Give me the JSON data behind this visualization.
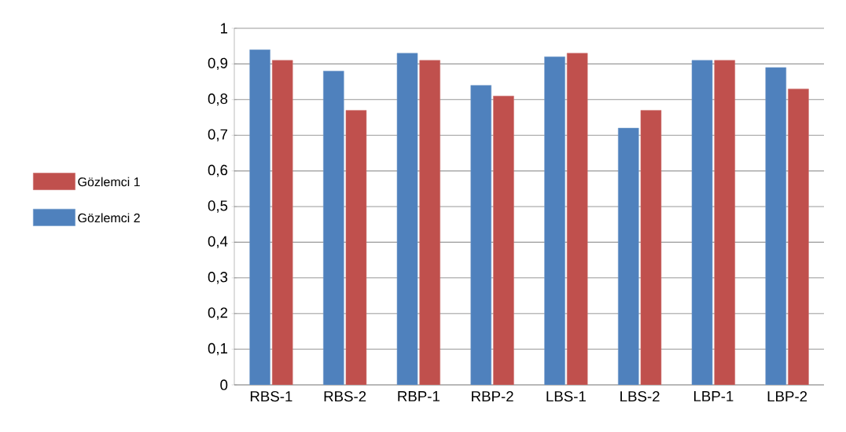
{
  "chart_data": {
    "type": "bar",
    "categories": [
      "RBS-1",
      "RBS-2",
      "RBP-1",
      "RBP-2",
      "LBS-1",
      "LBS-2",
      "LBP-1",
      "LBP-2"
    ],
    "series": [
      {
        "name": "Gözlemci 2",
        "color": "#4f81bd",
        "values": [
          0.94,
          0.88,
          0.93,
          0.84,
          0.92,
          0.72,
          0.91,
          0.89
        ]
      },
      {
        "name": "Gözlemci 1",
        "color": "#c0504d",
        "values": [
          0.91,
          0.77,
          0.91,
          0.81,
          0.93,
          0.77,
          0.91,
          0.83
        ]
      }
    ],
    "ylim": [
      0,
      1
    ],
    "yticks": [
      {
        "value": 0,
        "label": "0"
      },
      {
        "value": 0.1,
        "label": "0,1"
      },
      {
        "value": 0.2,
        "label": "0,2"
      },
      {
        "value": 0.3,
        "label": "0,3"
      },
      {
        "value": 0.4,
        "label": "0,4"
      },
      {
        "value": 0.5,
        "label": "0,5"
      },
      {
        "value": 0.6,
        "label": "0,6"
      },
      {
        "value": 0.7,
        "label": "0,7"
      },
      {
        "value": 0.8,
        "label": "0,8"
      },
      {
        "value": 0.9,
        "label": "0,9"
      },
      {
        "value": 1,
        "label": "1"
      }
    ],
    "grid": "y",
    "legend": "left"
  }
}
